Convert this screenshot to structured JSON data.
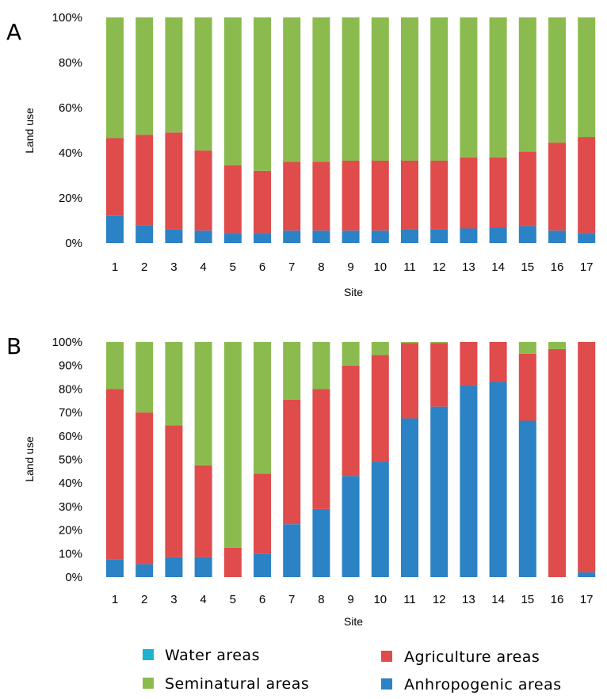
{
  "chart_data": [
    {
      "type": "bar",
      "stacked": true,
      "percent": true,
      "panel_label": "A",
      "title": "",
      "xlabel": "Site",
      "ylabel": "Land use",
      "categories": [
        "1",
        "2",
        "3",
        "4",
        "5",
        "6",
        "7",
        "8",
        "9",
        "10",
        "11",
        "12",
        "13",
        "14",
        "15",
        "16",
        "17"
      ],
      "ylim": [
        0,
        100
      ],
      "yticks": [
        "0%",
        "20%",
        "40%",
        "60%",
        "80%",
        "100%"
      ],
      "series": [
        {
          "name": "Anhropogenic areas",
          "color": "#2b82c4",
          "values": [
            12,
            8,
            6,
            5.5,
            4.5,
            4.5,
            5.5,
            5.5,
            5.5,
            5.5,
            6,
            6,
            6.5,
            7,
            7.5,
            5.5,
            4.5
          ]
        },
        {
          "name": "Agriculture areas",
          "color": "#e04b4b",
          "values": [
            34.5,
            40,
            43,
            35.5,
            30,
            27.5,
            30.5,
            30.5,
            31,
            31,
            30.5,
            30.5,
            31.5,
            31,
            33,
            39,
            42.5
          ]
        },
        {
          "name": "Water areas",
          "color": "#1bb3d0",
          "values": [
            0,
            0,
            0,
            0,
            0,
            0,
            0,
            0,
            0,
            0,
            0,
            0,
            0,
            0,
            0,
            0,
            0
          ]
        },
        {
          "name": "Seminatural areas",
          "color": "#8bbb4f",
          "values": [
            53.5,
            52,
            51,
            59,
            65.5,
            68,
            64,
            64,
            63.5,
            63.5,
            63.5,
            63.5,
            62,
            62,
            59.5,
            55.5,
            53
          ]
        }
      ]
    },
    {
      "type": "bar",
      "stacked": true,
      "percent": true,
      "panel_label": "B",
      "title": "",
      "xlabel": "Site",
      "ylabel": "Land use",
      "categories": [
        "1",
        "2",
        "3",
        "4",
        "5",
        "6",
        "7",
        "8",
        "9",
        "10",
        "11",
        "12",
        "13",
        "14",
        "15",
        "16",
        "17"
      ],
      "ylim": [
        0,
        100
      ],
      "yticks": [
        "0%",
        "10%",
        "20%",
        "30%",
        "40%",
        "50%",
        "60%",
        "70%",
        "80%",
        "90%",
        "100%"
      ],
      "series": [
        {
          "name": "Anhropogenic areas",
          "color": "#2b82c4",
          "values": [
            7.5,
            5.5,
            8.5,
            8.5,
            0,
            10,
            22.5,
            29,
            43,
            49,
            67.5,
            72.5,
            81.5,
            83,
            66.5,
            0,
            2
          ]
        },
        {
          "name": "Agriculture areas",
          "color": "#e04b4b",
          "values": [
            72.5,
            64.5,
            56,
            39,
            12.5,
            34,
            53,
            51,
            47,
            45.5,
            32,
            27,
            18.5,
            17,
            28.5,
            97,
            98
          ]
        },
        {
          "name": "Water areas",
          "color": "#1bb3d0",
          "values": [
            0,
            0,
            0,
            0,
            0,
            0,
            0,
            0,
            0,
            0,
            0,
            0,
            0,
            0,
            0,
            0,
            0
          ]
        },
        {
          "name": "Seminatural areas",
          "color": "#8bbb4f",
          "values": [
            20,
            30,
            35.5,
            52.5,
            87.5,
            56,
            24.5,
            20,
            10,
            5.5,
            0.5,
            0.5,
            0,
            0,
            5,
            3,
            0
          ]
        }
      ]
    }
  ],
  "legend": {
    "placement": "bottom",
    "items": [
      {
        "label": "Water areas",
        "color": "#1bb3d0"
      },
      {
        "label": "Agriculture areas",
        "color": "#e04b4b"
      },
      {
        "label": "Seminatural areas",
        "color": "#8bbb4f"
      },
      {
        "label": "Anhropogenic areas",
        "color": "#2b82c4"
      }
    ]
  }
}
